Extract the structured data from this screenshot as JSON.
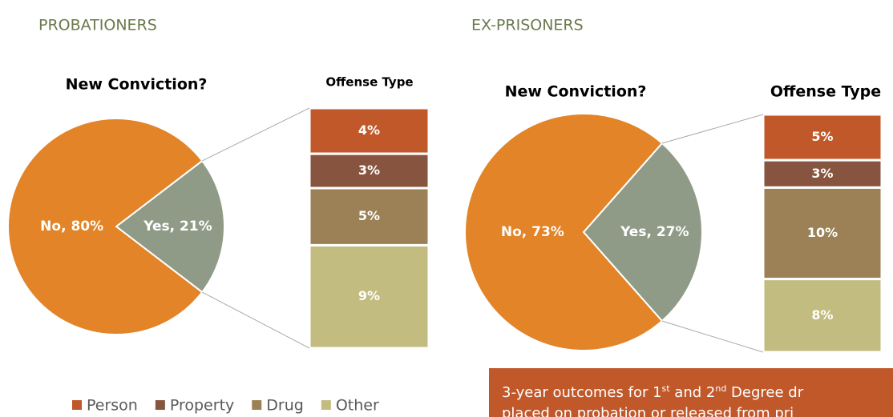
{
  "sections": [
    "PROBATIONERS",
    "EX-PRISONERS"
  ],
  "chart_data": [
    {
      "type": "pie",
      "title": "New Conviction?",
      "categories": [
        "No",
        "Yes"
      ],
      "values": [
        80,
        21
      ],
      "value_labels": [
        "No, 80%",
        "Yes, 21%"
      ],
      "colors": [
        "#e28427",
        "#8f9b87"
      ]
    },
    {
      "type": "bar",
      "title": "Offense Type",
      "categories": [
        "Person",
        "Property",
        "Drug",
        "Other"
      ],
      "values": [
        4,
        3,
        5,
        9
      ],
      "value_labels": [
        "4%",
        "3%",
        "5%",
        "9%"
      ],
      "colors": [
        "#c0582a",
        "#87553f",
        "#9b8155",
        "#c3bc80"
      ],
      "stacked": true,
      "legend": "bottom"
    },
    {
      "type": "pie",
      "title": "New Conviction?",
      "categories": [
        "No",
        "Yes"
      ],
      "values": [
        73,
        27
      ],
      "value_labels": [
        "No, 73%",
        "Yes, 27%"
      ],
      "colors": [
        "#e28427",
        "#8f9b87"
      ]
    },
    {
      "type": "bar",
      "title": "Offense Type",
      "categories": [
        "Person",
        "Property",
        "Drug",
        "Other"
      ],
      "values": [
        5,
        3,
        10,
        8
      ],
      "value_labels": [
        "5%",
        "3%",
        "10%",
        "8%"
      ],
      "colors": [
        "#c0582a",
        "#87553f",
        "#9b8155",
        "#c3bc80"
      ],
      "stacked": true
    }
  ],
  "note": {
    "line1": [
      "3-year outcomes for 1",
      "st",
      " and 2",
      "nd",
      " Degree dr"
    ],
    "line2": "placed on probation or released from pri"
  }
}
